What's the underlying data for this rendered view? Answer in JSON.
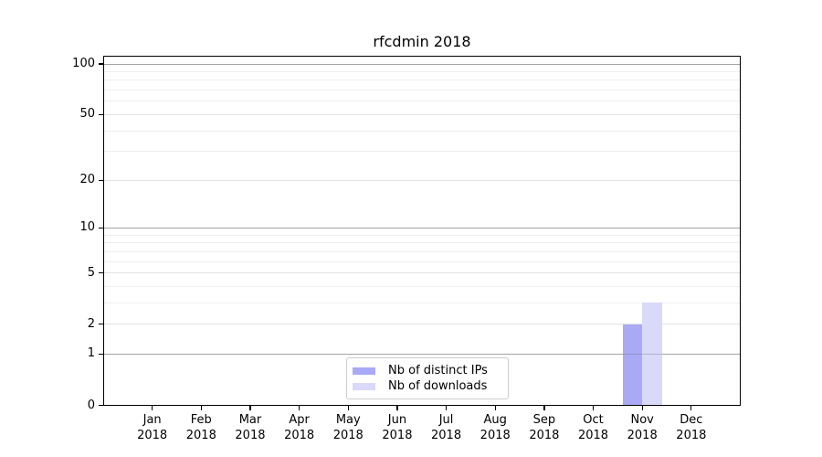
{
  "chart_data": {
    "type": "bar",
    "title": "rfcdmin 2018",
    "yscale": "log1p",
    "ylim": [
      0,
      112
    ],
    "xlabel": "",
    "ylabel": "",
    "grid": "horizontal",
    "legend_position": "lower center",
    "categories": [
      "Jan",
      "Feb",
      "Mar",
      "Apr",
      "May",
      "Jun",
      "Jul",
      "Aug",
      "Sep",
      "Oct",
      "Nov",
      "Dec"
    ],
    "year_label": "2018",
    "series": [
      {
        "name": "Nb of distinct IPs",
        "color": "#a9a9f6",
        "values": [
          0,
          0,
          0,
          0,
          0,
          0,
          0,
          0,
          0,
          0,
          2,
          0
        ]
      },
      {
        "name": "Nb of downloads",
        "color": "#d9d9f9",
        "values": [
          0,
          0,
          0,
          0,
          0,
          0,
          0,
          0,
          0,
          0,
          3,
          0
        ]
      }
    ],
    "yticks": [
      {
        "value": 0,
        "label": "0"
      },
      {
        "value": 1,
        "label": "1"
      },
      {
        "value": 2,
        "label": "2"
      },
      {
        "value": 5,
        "label": "5"
      },
      {
        "value": 10,
        "label": "10"
      },
      {
        "value": 20,
        "label": "20"
      },
      {
        "value": 50,
        "label": "50"
      },
      {
        "value": 100,
        "label": "100"
      }
    ],
    "gridlines": {
      "decade": {
        "values": [
          1,
          10,
          100
        ],
        "color": "#c3c3c3"
      },
      "mid": {
        "values": [
          2,
          5,
          20,
          50
        ],
        "color": "#e2e2e2"
      },
      "minor": {
        "values": [
          3,
          4,
          6,
          7,
          8,
          9,
          30,
          40,
          60,
          70,
          80,
          90
        ],
        "color": "#eeeeee"
      }
    },
    "colors": {
      "spine": "#000000",
      "background": "#ffffff",
      "decade_overlay": "rgba(100,100,100,0.32)"
    }
  }
}
